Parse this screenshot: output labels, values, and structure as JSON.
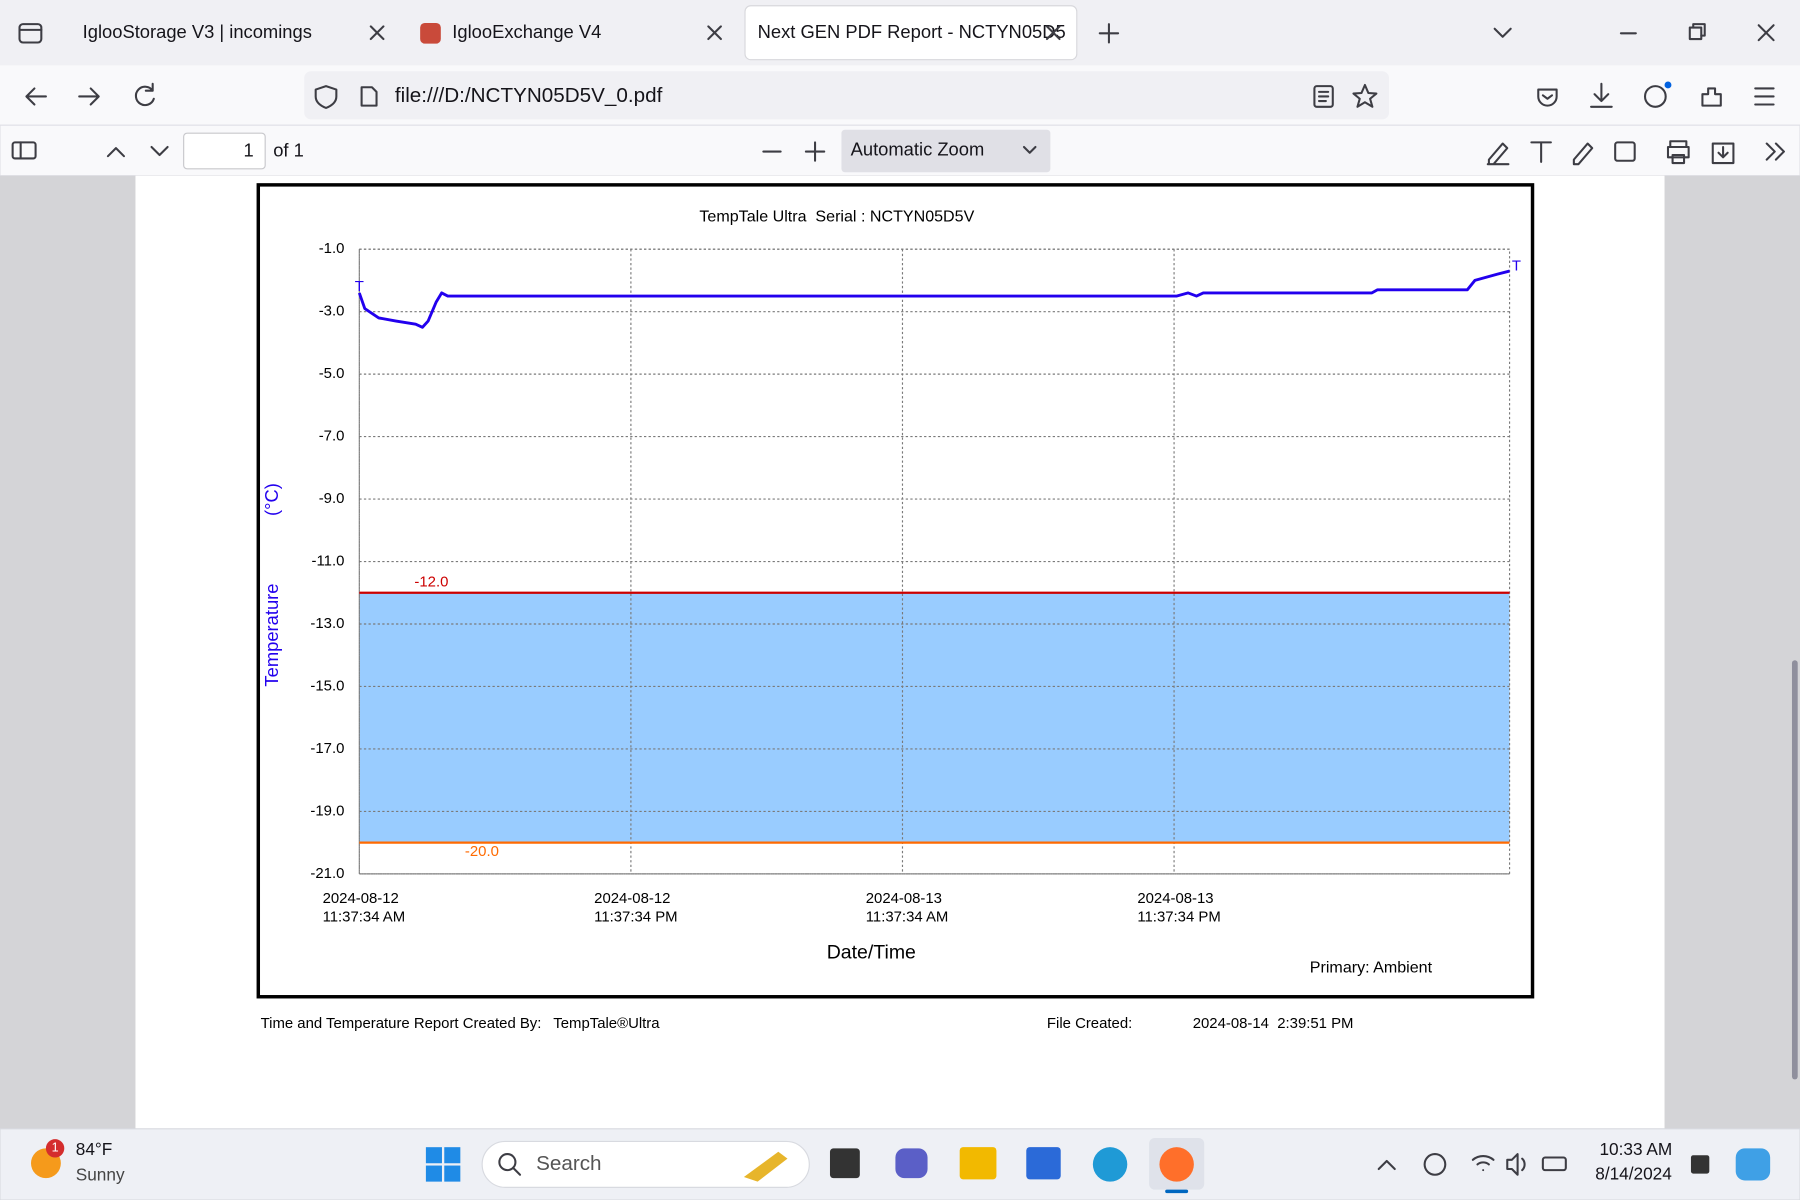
{
  "browser": {
    "tabs": [
      "IglooStorage V3 | incomings",
      "IglooExchange V4",
      "Next GEN PDF Report - NCTYN05D5"
    ],
    "url": "file:///D:/NCTYN05D5V_0.pdf"
  },
  "pdf_toolbar": {
    "page": "1",
    "page_count": "of 1",
    "zoom": "Automatic Zoom"
  },
  "chart_data": {
    "type": "line",
    "title": "TempTale Ultra  Serial : NCTYN05D5V",
    "y_label": "Temperature",
    "y_unit": "(°C)",
    "x_label": "Date/Time",
    "marker_label": "T",
    "grid": true,
    "x": [
      "2024-08-12T11:37:34",
      "2024-08-12T11:52",
      "2024-08-12T12:29",
      "2024-08-12T13:15",
      "2024-08-12T14:07",
      "2024-08-12T14:25",
      "2024-08-12T14:40",
      "2024-08-12T15:01",
      "2024-08-12T15:16",
      "2024-08-12T15:32",
      "2024-08-13T23:45",
      "2024-08-14T00:15",
      "2024-08-14T00:37",
      "2024-08-14T00:55",
      "2024-08-14T08:22",
      "2024-08-14T08:37",
      "2024-08-14T12:35",
      "2024-08-14T12:55",
      "2024-08-14T13:25",
      "2024-08-14T13:55",
      "2024-08-14T14:27"
    ],
    "series": [
      {
        "name": "Primary: Ambient",
        "color": "#2200ee",
        "values": [
          -2.4,
          -2.9,
          -3.2,
          -3.3,
          -3.4,
          -3.5,
          -3.3,
          -2.7,
          -2.4,
          -2.5,
          -2.5,
          -2.4,
          -2.5,
          -2.4,
          -2.4,
          -2.3,
          -2.3,
          -2.0,
          -1.9,
          -1.8,
          -1.7
        ]
      }
    ],
    "limits": [
      {
        "value": -12,
        "label": "-12.0",
        "color": "#cc0000"
      },
      {
        "value": -20,
        "label": "-20.0",
        "color": "#ff6a00"
      }
    ],
    "band_color": "#99ccff",
    "xlim": [
      "2024-08-12T11:37:34",
      "2024-08-14T14:27"
    ],
    "xticks": [
      {
        "value": "2024-08-12T11:37:34",
        "label": [
          "2024-08-12",
          "11:37:34 AM"
        ]
      },
      {
        "value": "2024-08-12T23:37:34",
        "label": [
          "2024-08-12",
          "11:37:34 PM"
        ]
      },
      {
        "value": "2024-08-13T11:37:34",
        "label": [
          "2024-08-13",
          "11:37:34 AM"
        ]
      },
      {
        "value": "2024-08-13T23:37:34",
        "label": [
          "2024-08-13",
          "11:37:34 PM"
        ]
      }
    ],
    "ylim": [
      -21,
      -1
    ],
    "yticks": [
      {
        "value": -1,
        "label": "-1.0"
      },
      {
        "value": -3,
        "label": "-3.0"
      },
      {
        "value": -5,
        "label": "-5.0"
      },
      {
        "value": -7,
        "label": "-7.0"
      },
      {
        "value": -9,
        "label": "-9.0"
      },
      {
        "value": -11,
        "label": "-11.0"
      },
      {
        "value": -13,
        "label": "-13.0"
      },
      {
        "value": -15,
        "label": "-15.0"
      },
      {
        "value": -17,
        "label": "-17.0"
      },
      {
        "value": -19,
        "label": "-19.0"
      },
      {
        "value": -21,
        "label": "-21.0"
      }
    ]
  },
  "report_footer": {
    "created_by": "Time and Temperature Report Created By:",
    "product": "TempTale®Ultra",
    "file_created_label": "File Created:",
    "file_created": "2024-08-14  2:39:51 PM"
  },
  "taskbar": {
    "weather_badge": "1",
    "temperature": "84°F",
    "condition": "Sunny",
    "search": "Search",
    "time": "10:33 AM",
    "date": "8/14/2024"
  }
}
